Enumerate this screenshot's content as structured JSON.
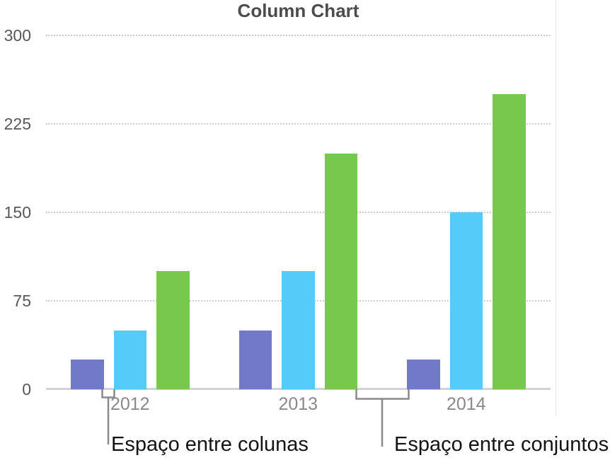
{
  "figure": {
    "callouts": [
      {
        "id": "column-gap",
        "label": "Espaço entre colunas"
      },
      {
        "id": "set-gap",
        "label": "Espaço entre conjuntos"
      }
    ]
  },
  "chart_data": {
    "type": "bar",
    "title": "Column Chart",
    "categories": [
      "2012",
      "2013",
      "2014"
    ],
    "series": [
      {
        "color": "#7279C7",
        "values": [
          25,
          50,
          25
        ]
      },
      {
        "color": "#54CBF8",
        "values": [
          50,
          100,
          150
        ]
      },
      {
        "color": "#78C84E",
        "values": [
          100,
          200,
          250
        ]
      }
    ],
    "xlabel": "",
    "ylabel": "",
    "ylim": [
      0,
      300
    ],
    "yticks": [
      0,
      75,
      150,
      225,
      300
    ],
    "grid": "dotted-horizontal",
    "legend": "none",
    "axis_color": "#d2d3d5",
    "gridline_color": "#cbccce",
    "bracket_color": "#8a8a8a"
  }
}
